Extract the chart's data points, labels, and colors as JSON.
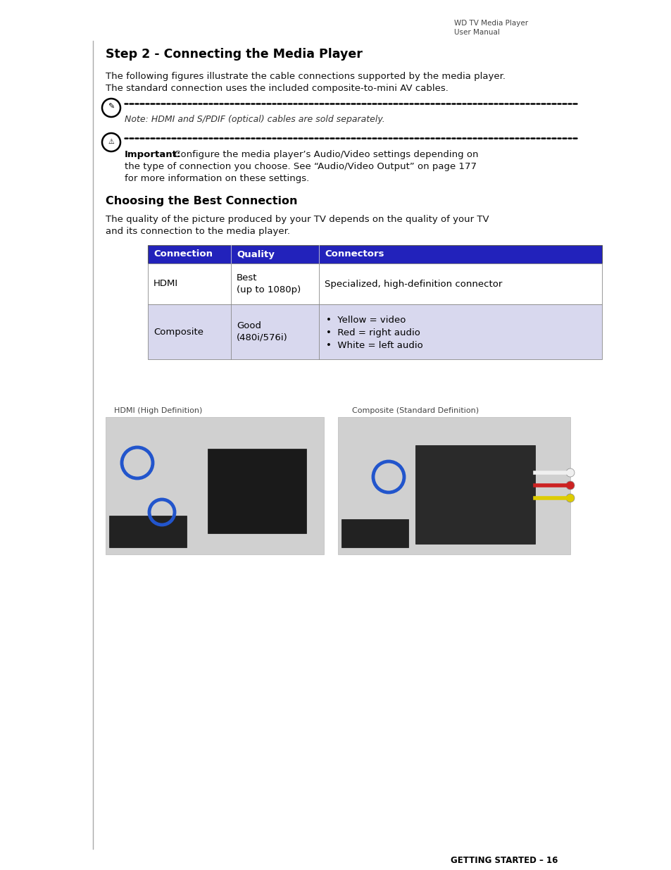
{
  "page_bg": "#ffffff",
  "header_right_line1": "WD TV Media Player",
  "header_right_line2": "User Manual",
  "section1_title": "Step 2 - Connecting the Media Player",
  "section1_body1": "The following figures illustrate the cable connections supported by the media player.",
  "section1_body2": "The standard connection uses the included composite-to-mini AV cables.",
  "note_text": "Note: HDMI and S/PDIF (optical) cables are sold separately.",
  "important_label": "Important:",
  "important_line1": " Configure the media player’s Audio/Video settings depending on",
  "important_line2": "the type of connection you choose. See “Audio/Video Output” on page 177",
  "important_line3": "for more information on these settings.",
  "section2_title": "Choosing the Best Connection",
  "section2_body1": "The quality of the picture produced by your TV depends on the quality of your TV",
  "section2_body2": "and its connection to the media player.",
  "table_header_bg": "#2222bb",
  "table_header_text_color": "#ffffff",
  "table_row2_bg": "#d8d8ee",
  "table_row1_bg": "#ffffff",
  "table_col1_header": "Connection",
  "table_col2_header": "Quality",
  "table_col3_header": "Connectors",
  "table_row1_col1": "HDMI",
  "table_row1_col2a": "Best",
  "table_row1_col2b": "(up to 1080p)",
  "table_row1_col3": "Specialized, high-definition connector",
  "table_row2_col1": "Composite",
  "table_row2_col2a": "Good",
  "table_row2_col2b": "(480i/576i)",
  "table_row2_col3_bullets": [
    "Yellow = video",
    "Red = right audio",
    "White = left audio"
  ],
  "hdmi_caption": "HDMI (High Definition)",
  "composite_caption": "Composite (Standard Definition)",
  "footer_text": "GETTING STARTED – 16"
}
